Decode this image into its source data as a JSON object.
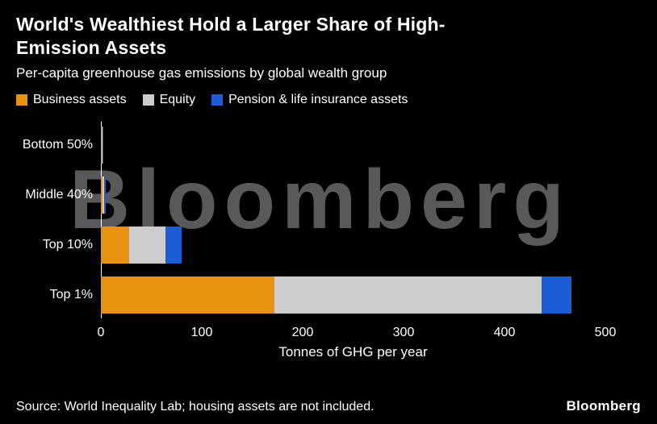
{
  "header": {
    "title_line1": "World's Wealthiest Hold a Larger Share of High-",
    "title_line2": "Emission Assets",
    "subtitle": "Per-capita greenhouse gas emissions by global wealth group"
  },
  "chart_data": {
    "type": "bar",
    "orientation": "horizontal",
    "stacked": true,
    "categories": [
      "Bottom 50%",
      "Middle 40%",
      "Top 10%",
      "Top 1%"
    ],
    "series": [
      {
        "name": "Business assets",
        "color": "#e8920f",
        "values": [
          0.6,
          1.5,
          28,
          172
        ]
      },
      {
        "name": "Equity",
        "color": "#cdcdcd",
        "values": [
          0.6,
          1.5,
          36,
          265
        ]
      },
      {
        "name": "Pension & life insurance assets",
        "color": "#1a5dd6",
        "values": [
          0.4,
          2,
          16,
          29
        ]
      }
    ],
    "xlabel": "Tonnes of GHG per year",
    "xlim": [
      0,
      500
    ],
    "xticks": [
      0,
      100,
      200,
      300,
      400,
      500
    ],
    "legend_position": "top",
    "grid": false
  },
  "watermark": "Bloomberg",
  "footer": {
    "source": "Source: World Inequality Lab; housing assets are not included.",
    "brand": "Bloomberg"
  },
  "colors": {
    "background": "#000000",
    "text": "#ffffff",
    "axis": "#ffffff",
    "watermark": "#59595b"
  }
}
